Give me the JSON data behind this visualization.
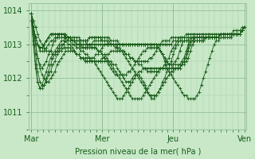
{
  "bg_color": "#c8e8c8",
  "line_color": "#1a5c1a",
  "grid_color_major": "#8aba8a",
  "grid_color_minor": "#a8cca8",
  "tick_color": "#1a5c1a",
  "label_color": "#1a5c1a",
  "xlabel": "Pression niveau de la mer( hPa )",
  "ylim": [
    1010.5,
    1014.2
  ],
  "yticks": [
    1011,
    1012,
    1013,
    1014
  ],
  "xtick_labels": [
    "Mar",
    "Mer",
    "Jeu",
    "Ven"
  ],
  "xtick_positions": [
    0,
    32,
    64,
    96
  ],
  "n_points": 100,
  "series": [
    [
      1013.9,
      1013.7,
      1013.5,
      1013.3,
      1013.1,
      1013.0,
      1012.9,
      1012.8,
      1012.8,
      1012.8,
      1012.7,
      1012.7,
      1012.8,
      1012.8,
      1012.9,
      1013.0,
      1013.1,
      1013.1,
      1013.2,
      1013.2,
      1013.2,
      1013.2,
      1013.2,
      1013.1,
      1013.1,
      1013.1,
      1013.0,
      1013.0,
      1013.0,
      1013.0,
      1013.0,
      1013.0,
      1013.0,
      1013.0,
      1013.0,
      1013.0,
      1013.0,
      1013.0,
      1013.0,
      1013.0,
      1013.0,
      1013.0,
      1013.0,
      1013.0,
      1013.0,
      1013.0,
      1013.0,
      1013.0,
      1013.0,
      1013.0,
      1013.0,
      1013.0,
      1013.0,
      1013.0,
      1013.0,
      1013.0,
      1013.0,
      1013.0,
      1013.0,
      1013.0,
      1013.0,
      1013.0,
      1013.0,
      1013.0,
      1013.0,
      1013.0,
      1013.1,
      1013.1,
      1013.1,
      1013.2,
      1013.2,
      1013.2,
      1013.3,
      1013.3,
      1013.3,
      1013.3,
      1013.3,
      1013.3,
      1013.3,
      1013.3,
      1013.3,
      1013.3,
      1013.3,
      1013.3,
      1013.3,
      1013.3,
      1013.3,
      1013.3,
      1013.3,
      1013.3,
      1013.3,
      1013.3,
      1013.3,
      1013.3,
      1013.4,
      1013.4,
      1013.4,
      1013.4,
      1013.5,
      1013.5
    ],
    [
      1013.9,
      1013.5,
      1013.0,
      1012.6,
      1012.3,
      1012.1,
      1012.0,
      1011.9,
      1011.9,
      1012.0,
      1012.1,
      1012.2,
      1012.4,
      1012.5,
      1012.6,
      1012.7,
      1012.8,
      1012.8,
      1012.8,
      1012.8,
      1012.8,
      1012.7,
      1012.7,
      1012.6,
      1012.6,
      1012.5,
      1012.5,
      1012.5,
      1012.5,
      1012.5,
      1012.5,
      1012.5,
      1012.5,
      1012.6,
      1012.6,
      1012.7,
      1012.7,
      1012.8,
      1012.8,
      1012.8,
      1012.8,
      1012.8,
      1012.8,
      1012.8,
      1012.7,
      1012.7,
      1012.6,
      1012.6,
      1012.5,
      1012.5,
      1012.5,
      1012.5,
      1012.5,
      1012.5,
      1012.5,
      1012.6,
      1012.6,
      1012.7,
      1012.8,
      1012.9,
      1013.0,
      1013.1,
      1013.1,
      1013.1,
      1013.1,
      1013.2,
      1013.2,
      1013.2,
      1013.2,
      1013.2,
      1013.2,
      1013.2,
      1013.2,
      1013.2,
      1013.2,
      1013.2,
      1013.2,
      1013.2,
      1013.2,
      1013.2,
      1013.2,
      1013.2,
      1013.2,
      1013.2,
      1013.2,
      1013.2,
      1013.2,
      1013.2,
      1013.3,
      1013.3,
      1013.3,
      1013.3,
      1013.3,
      1013.3,
      1013.3,
      1013.3,
      1013.3,
      1013.3,
      1013.4,
      1013.5
    ],
    [
      1013.9,
      1013.3,
      1012.7,
      1012.2,
      1011.9,
      1011.8,
      1011.8,
      1011.9,
      1012.1,
      1012.2,
      1012.4,
      1012.5,
      1012.7,
      1012.8,
      1012.8,
      1012.9,
      1012.9,
      1012.9,
      1012.9,
      1012.8,
      1012.8,
      1012.7,
      1012.7,
      1012.6,
      1012.6,
      1012.6,
      1012.6,
      1012.6,
      1012.6,
      1012.6,
      1012.7,
      1012.7,
      1012.8,
      1012.9,
      1013.0,
      1013.0,
      1013.0,
      1013.0,
      1013.0,
      1013.0,
      1012.9,
      1012.9,
      1012.8,
      1012.8,
      1012.7,
      1012.7,
      1012.6,
      1012.6,
      1012.5,
      1012.5,
      1012.4,
      1012.4,
      1012.3,
      1012.3,
      1012.2,
      1012.2,
      1012.2,
      1012.2,
      1012.2,
      1012.2,
      1012.3,
      1012.3,
      1012.4,
      1012.5,
      1012.6,
      1012.8,
      1012.9,
      1013.0,
      1013.1,
      1013.1,
      1013.1,
      1013.1,
      1013.1,
      1013.1,
      1013.2,
      1013.2,
      1013.2,
      1013.2,
      1013.2,
      1013.2,
      1013.2,
      1013.2,
      1013.2,
      1013.2,
      1013.2,
      1013.2,
      1013.2,
      1013.2,
      1013.3,
      1013.3,
      1013.3,
      1013.3,
      1013.3,
      1013.3,
      1013.3,
      1013.3,
      1013.3,
      1013.3,
      1013.4,
      1013.5
    ],
    [
      1013.9,
      1013.1,
      1012.4,
      1011.9,
      1011.7,
      1011.7,
      1011.8,
      1012.0,
      1012.2,
      1012.4,
      1012.6,
      1012.7,
      1012.8,
      1012.9,
      1013.0,
      1013.0,
      1013.1,
      1013.0,
      1013.0,
      1012.9,
      1012.8,
      1012.7,
      1012.7,
      1012.6,
      1012.6,
      1012.5,
      1012.5,
      1012.5,
      1012.5,
      1012.5,
      1012.5,
      1012.5,
      1012.5,
      1012.5,
      1012.5,
      1012.5,
      1012.5,
      1012.5,
      1012.4,
      1012.4,
      1012.3,
      1012.2,
      1012.1,
      1012.0,
      1011.9,
      1011.9,
      1011.9,
      1012.0,
      1012.1,
      1012.1,
      1012.1,
      1012.0,
      1011.9,
      1011.8,
      1011.6,
      1011.5,
      1011.4,
      1011.4,
      1011.5,
      1011.6,
      1011.7,
      1011.9,
      1012.0,
      1012.2,
      1012.3,
      1012.5,
      1012.7,
      1012.9,
      1013.0,
      1013.1,
      1013.1,
      1013.1,
      1013.1,
      1013.1,
      1013.1,
      1013.1,
      1013.2,
      1013.2,
      1013.2,
      1013.2,
      1013.2,
      1013.2,
      1013.2,
      1013.2,
      1013.2,
      1013.2,
      1013.2,
      1013.2,
      1013.3,
      1013.3,
      1013.3,
      1013.3,
      1013.3,
      1013.3,
      1013.3,
      1013.3,
      1013.3,
      1013.3,
      1013.4,
      1013.5
    ],
    [
      1013.7,
      1013.0,
      1012.3,
      1011.9,
      1011.7,
      1011.8,
      1012.0,
      1012.2,
      1012.4,
      1012.6,
      1012.7,
      1012.8,
      1012.9,
      1013.0,
      1013.1,
      1013.1,
      1013.2,
      1013.2,
      1013.2,
      1013.1,
      1013.1,
      1013.0,
      1013.0,
      1012.9,
      1012.9,
      1012.9,
      1012.9,
      1012.9,
      1012.9,
      1012.9,
      1012.9,
      1012.8,
      1012.8,
      1012.7,
      1012.6,
      1012.5,
      1012.4,
      1012.3,
      1012.2,
      1012.1,
      1012.1,
      1012.1,
      1012.1,
      1012.1,
      1012.1,
      1012.2,
      1012.2,
      1012.3,
      1012.4,
      1012.5,
      1012.6,
      1012.7,
      1012.8,
      1012.8,
      1012.9,
      1012.9,
      1012.9,
      1012.9,
      1012.9,
      1012.9,
      1012.8,
      1012.7,
      1012.6,
      1012.5,
      1012.4,
      1012.4,
      1012.3,
      1012.3,
      1012.3,
      1012.3,
      1012.4,
      1012.5,
      1012.6,
      1012.8,
      1013.0,
      1013.1,
      1013.1,
      1013.1,
      1013.1,
      1013.1,
      1013.1,
      1013.2,
      1013.2,
      1013.2,
      1013.2,
      1013.2,
      1013.2,
      1013.2,
      1013.3,
      1013.3,
      1013.3,
      1013.3,
      1013.3,
      1013.3,
      1013.3,
      1013.3,
      1013.3,
      1013.3,
      1013.4,
      1013.5
    ],
    [
      1013.9,
      1013.5,
      1013.0,
      1012.6,
      1012.4,
      1012.3,
      1012.4,
      1012.5,
      1012.7,
      1012.8,
      1013.0,
      1013.1,
      1013.2,
      1013.3,
      1013.3,
      1013.3,
      1013.3,
      1013.2,
      1013.2,
      1013.1,
      1013.1,
      1013.0,
      1013.0,
      1013.0,
      1012.9,
      1012.9,
      1012.9,
      1013.0,
      1013.0,
      1013.1,
      1013.1,
      1013.1,
      1013.1,
      1013.1,
      1013.1,
      1013.1,
      1013.1,
      1013.0,
      1013.0,
      1013.0,
      1013.0,
      1013.0,
      1013.0,
      1013.0,
      1013.0,
      1013.0,
      1013.0,
      1013.0,
      1013.0,
      1013.0,
      1013.0,
      1013.0,
      1013.0,
      1013.0,
      1013.0,
      1013.0,
      1013.0,
      1013.0,
      1013.0,
      1012.9,
      1012.8,
      1012.7,
      1012.6,
      1012.5,
      1012.4,
      1012.4,
      1012.4,
      1012.5,
      1012.6,
      1012.8,
      1013.0,
      1013.1,
      1013.1,
      1013.1,
      1013.1,
      1013.1,
      1013.2,
      1013.2,
      1013.2,
      1013.2,
      1013.2,
      1013.2,
      1013.2,
      1013.2,
      1013.2,
      1013.2,
      1013.2,
      1013.2,
      1013.3,
      1013.3,
      1013.3,
      1013.3,
      1013.3,
      1013.3,
      1013.3,
      1013.3,
      1013.3,
      1013.3,
      1013.4,
      1013.5
    ],
    [
      1013.9,
      1013.5,
      1013.2,
      1013.0,
      1012.9,
      1012.9,
      1013.0,
      1013.1,
      1013.2,
      1013.3,
      1013.3,
      1013.3,
      1013.3,
      1013.3,
      1013.3,
      1013.3,
      1013.2,
      1013.2,
      1013.2,
      1013.1,
      1013.1,
      1013.1,
      1013.1,
      1013.1,
      1013.1,
      1013.1,
      1013.1,
      1013.2,
      1013.2,
      1013.2,
      1013.2,
      1013.2,
      1013.2,
      1013.2,
      1013.2,
      1013.2,
      1013.2,
      1013.1,
      1013.1,
      1013.1,
      1013.1,
      1013.0,
      1013.0,
      1013.0,
      1013.0,
      1013.0,
      1013.0,
      1013.0,
      1013.0,
      1013.0,
      1013.0,
      1013.0,
      1013.0,
      1013.0,
      1013.0,
      1013.0,
      1013.0,
      1013.0,
      1013.0,
      1012.9,
      1012.8,
      1012.7,
      1012.5,
      1012.3,
      1012.2,
      1012.1,
      1012.0,
      1011.9,
      1011.8,
      1011.7,
      1011.6,
      1011.5,
      1011.5,
      1011.4,
      1011.4,
      1011.4,
      1011.4,
      1011.5,
      1011.6,
      1011.8,
      1012.0,
      1012.2,
      1012.4,
      1012.6,
      1012.8,
      1013.0,
      1013.1,
      1013.1,
      1013.2,
      1013.2,
      1013.2,
      1013.2,
      1013.2,
      1013.2,
      1013.3,
      1013.3,
      1013.3,
      1013.3,
      1013.4,
      1013.5
    ],
    [
      1013.9,
      1013.5,
      1013.2,
      1013.0,
      1012.9,
      1012.9,
      1013.0,
      1013.1,
      1013.2,
      1013.3,
      1013.3,
      1013.3,
      1013.3,
      1013.3,
      1013.3,
      1013.3,
      1013.2,
      1013.2,
      1013.2,
      1013.1,
      1013.1,
      1013.1,
      1013.1,
      1013.1,
      1013.1,
      1013.1,
      1013.1,
      1013.2,
      1013.2,
      1013.2,
      1013.2,
      1013.2,
      1013.2,
      1013.1,
      1013.1,
      1013.1,
      1013.0,
      1013.0,
      1013.0,
      1012.9,
      1012.9,
      1012.8,
      1012.8,
      1012.7,
      1012.6,
      1012.5,
      1012.4,
      1012.3,
      1012.2,
      1012.1,
      1012.0,
      1011.9,
      1011.8,
      1011.7,
      1011.6,
      1011.5,
      1011.5,
      1011.5,
      1011.5,
      1011.6,
      1011.7,
      1011.8,
      1011.9,
      1012.0,
      1012.1,
      1012.2,
      1012.2,
      1012.3,
      1012.3,
      1012.4,
      1012.5,
      1012.6,
      1012.8,
      1013.0,
      1013.1,
      1013.1,
      1013.1,
      1013.1,
      1013.1,
      1013.1,
      1013.1,
      1013.2,
      1013.2,
      1013.2,
      1013.2,
      1013.2,
      1013.2,
      1013.2,
      1013.3,
      1013.3,
      1013.3,
      1013.3,
      1013.3,
      1013.3,
      1013.3,
      1013.3,
      1013.3,
      1013.3,
      1013.4,
      1013.5
    ],
    [
      1013.9,
      1013.5,
      1013.2,
      1013.0,
      1012.9,
      1012.9,
      1013.0,
      1013.1,
      1013.2,
      1013.3,
      1013.3,
      1013.3,
      1013.3,
      1013.3,
      1013.3,
      1013.3,
      1013.2,
      1013.2,
      1013.2,
      1013.1,
      1013.1,
      1013.1,
      1013.1,
      1013.0,
      1013.0,
      1013.0,
      1013.0,
      1013.0,
      1012.9,
      1012.9,
      1012.9,
      1012.8,
      1012.8,
      1012.7,
      1012.7,
      1012.6,
      1012.5,
      1012.4,
      1012.3,
      1012.2,
      1012.1,
      1012.0,
      1011.9,
      1011.8,
      1011.7,
      1011.6,
      1011.5,
      1011.4,
      1011.4,
      1011.4,
      1011.4,
      1011.4,
      1011.5,
      1011.6,
      1011.7,
      1011.8,
      1011.9,
      1012.0,
      1012.1,
      1012.2,
      1012.3,
      1012.3,
      1012.4,
      1012.4,
      1012.4,
      1012.4,
      1012.4,
      1012.4,
      1012.4,
      1012.4,
      1012.4,
      1012.4,
      1012.5,
      1012.6,
      1012.8,
      1013.0,
      1013.1,
      1013.1,
      1013.1,
      1013.1,
      1013.1,
      1013.2,
      1013.2,
      1013.2,
      1013.2,
      1013.2,
      1013.2,
      1013.2,
      1013.3,
      1013.3,
      1013.3,
      1013.3,
      1013.3,
      1013.3,
      1013.3,
      1013.3,
      1013.3,
      1013.3,
      1013.4,
      1013.5
    ],
    [
      1013.9,
      1013.5,
      1013.2,
      1013.0,
      1012.8,
      1012.8,
      1012.8,
      1012.9,
      1013.0,
      1013.1,
      1013.1,
      1013.2,
      1013.2,
      1013.2,
      1013.2,
      1013.2,
      1013.2,
      1013.1,
      1013.1,
      1013.0,
      1013.0,
      1012.9,
      1012.9,
      1012.8,
      1012.8,
      1012.7,
      1012.7,
      1012.6,
      1012.5,
      1012.5,
      1012.4,
      1012.3,
      1012.2,
      1012.1,
      1012.0,
      1011.9,
      1011.8,
      1011.7,
      1011.6,
      1011.5,
      1011.4,
      1011.4,
      1011.4,
      1011.5,
      1011.6,
      1011.7,
      1011.8,
      1011.9,
      1012.0,
      1012.1,
      1012.2,
      1012.2,
      1012.3,
      1012.3,
      1012.3,
      1012.3,
      1012.3,
      1012.3,
      1012.3,
      1012.3,
      1012.3,
      1012.3,
      1012.3,
      1012.3,
      1012.3,
      1012.3,
      1012.3,
      1012.3,
      1012.3,
      1012.3,
      1012.4,
      1012.5,
      1012.7,
      1012.9,
      1013.1,
      1013.2,
      1013.2,
      1013.2,
      1013.2,
      1013.2,
      1013.2,
      1013.2,
      1013.2,
      1013.2,
      1013.2,
      1013.2,
      1013.2,
      1013.2,
      1013.3,
      1013.3,
      1013.3,
      1013.3,
      1013.3,
      1013.3,
      1013.3,
      1013.3,
      1013.3,
      1013.3,
      1013.4,
      1013.5
    ]
  ]
}
